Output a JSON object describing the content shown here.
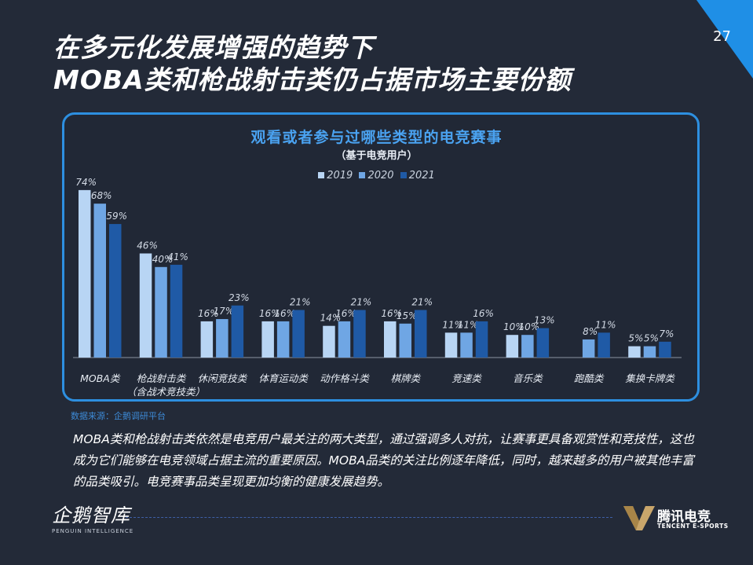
{
  "page_number": "27",
  "title_line1": "在多元化发展增强的趋势下",
  "title_line2": "MOBA类和枪战射击类仍占据市场主要份额",
  "colors": {
    "y2019": "#b8d5f4",
    "y2020": "#6fa6e4",
    "y2021": "#1f5aa6",
    "accent": "#2d8fe0",
    "background": "#232a38"
  },
  "chart_data": {
    "type": "bar",
    "title": "观看或者参与过哪些类型的电竞赛事",
    "subtitle": "（基于电竞用户）",
    "categories": [
      "MOBA类",
      "枪战射击类",
      "休闲竞技类",
      "体育运动类",
      "动作格斗类",
      "棋牌类",
      "竞速类",
      "音乐类",
      "跑酷类",
      "集换卡牌类"
    ],
    "category_sublabels": [
      "",
      "（含战术竞技类）",
      "",
      "",
      "",
      "",
      "",
      "",
      "",
      ""
    ],
    "series": [
      {
        "name": "2019",
        "values": [
          74,
          46,
          16,
          16,
          14,
          16,
          11,
          10,
          null,
          5
        ]
      },
      {
        "name": "2020",
        "values": [
          68,
          40,
          17,
          16,
          16,
          15,
          11,
          10,
          8,
          5
        ]
      },
      {
        "name": "2021",
        "values": [
          59,
          41,
          23,
          21,
          21,
          21,
          16,
          13,
          11,
          7
        ]
      }
    ],
    "value_suffix": "%",
    "ylim": [
      0,
      80
    ],
    "xlabel": "",
    "ylabel": "",
    "legend_position": "top-center"
  },
  "source_text": "数据来源：企鹅调研平台",
  "body_text": "MOBA类和枪战射击类依然是电竞用户最关注的两大类型，通过强调多人对抗，让赛事更具备观赏性和竞技性，这也成为它们能够在电竞领域占据主流的重要原因。MOBA品类的关注比例逐年降低，同时，越来越多的用户被其他丰富的品类吸引。电竞赛事品类呈现更加均衡的健康发展趋势。",
  "logo_left": {
    "name": "企鹅智库",
    "english": "PENGUIN INTELLIGENCE"
  },
  "logo_right": {
    "name": "腾讯电竞",
    "english": "TENCENT E-SPORTS"
  }
}
